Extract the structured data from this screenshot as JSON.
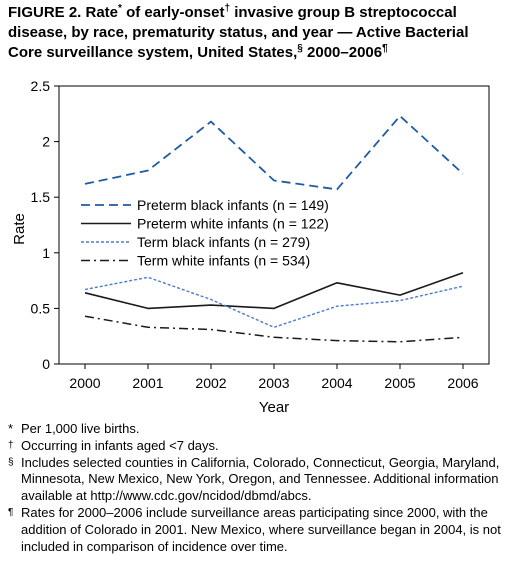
{
  "title": {
    "line1_a": "FIGURE 2. Rate",
    "mark_star": "*",
    "line1_b": " of early-onset",
    "mark_dagger": "†",
    "line1_c": " invasive group B streptococcal",
    "line2": "disease, by race, prematurity status, and year — Active Bacterial",
    "line3_a": "Core surveillance system, United States,",
    "mark_section": "§",
    "line3_b": " 2000–2006",
    "mark_para": "¶"
  },
  "chart_data": {
    "type": "line",
    "title": "",
    "xlabel": "Year",
    "ylabel": "Rate",
    "x": [
      "2000",
      "2001",
      "2002",
      "2003",
      "2004",
      "2005",
      "2006"
    ],
    "ylim": [
      0,
      2.5
    ],
    "yticks": [
      "0",
      "0.5",
      "1",
      "1.5",
      "2",
      "2.5"
    ],
    "grid": false,
    "legend_position": "left, mid-chart",
    "series": [
      {
        "name": "Preterm black infants (n = 149)",
        "style": "long-dash",
        "color": "#1f5aa6",
        "values": [
          1.62,
          1.74,
          2.18,
          1.65,
          1.57,
          2.23,
          1.71
        ]
      },
      {
        "name": "Preterm white infants (n = 122)",
        "style": "solid",
        "color": "#1a1a1a",
        "values": [
          0.64,
          0.5,
          0.53,
          0.5,
          0.73,
          0.62,
          0.82
        ]
      },
      {
        "name": "Term black infants (n = 279)",
        "style": "short-dash",
        "color": "#4a7cc9",
        "values": [
          0.67,
          0.78,
          0.58,
          0.33,
          0.52,
          0.57,
          0.7
        ]
      },
      {
        "name": "Term white infants (n = 534)",
        "style": "dash-dot",
        "color": "#1a1a1a",
        "values": [
          0.43,
          0.33,
          0.31,
          0.24,
          0.21,
          0.2,
          0.24
        ]
      }
    ]
  },
  "footnotes": [
    {
      "mark": "*",
      "text": "Per 1,000 live births."
    },
    {
      "mark": "†",
      "text": "Occurring in infants aged <7 days."
    },
    {
      "mark": "§",
      "text": "Includes selected counties in California, Colorado, Connecticut, Georgia, Maryland, Minnesota, New Mexico, New York, Oregon, and Tennessee. Additional information available at http://www.cdc.gov/ncidod/dbmd/abcs."
    },
    {
      "mark": "¶",
      "text": "Rates for 2000–2006 include surveillance areas participating since 2000, with the addition of Colorado in 2001. New Mexico, where surveillance began in 2004, is not included in comparison of incidence over time."
    }
  ]
}
